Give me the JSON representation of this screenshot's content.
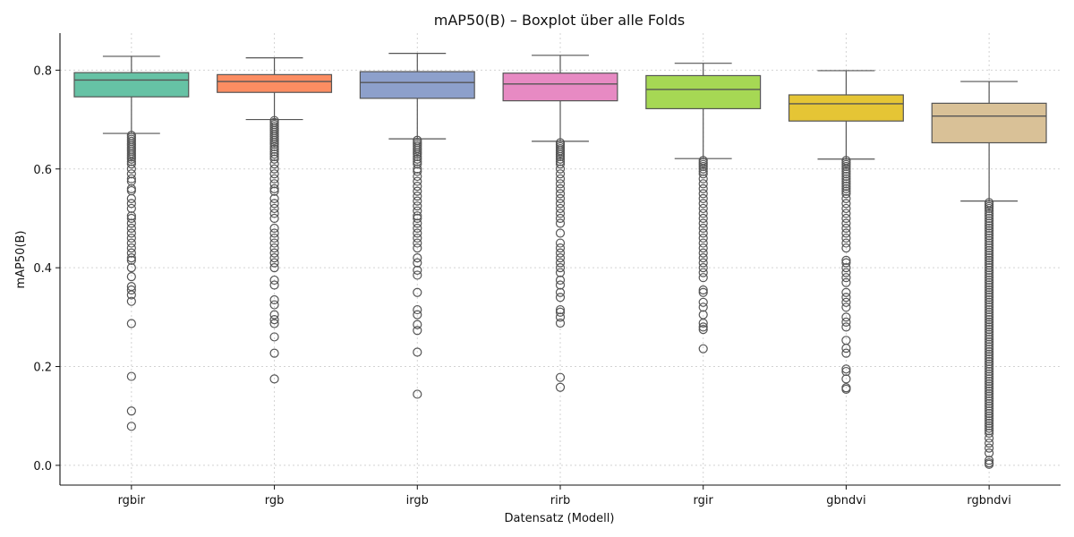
{
  "chart_data": {
    "type": "boxplot",
    "title": "mAP50(B) – Boxplot über alle Folds",
    "xlabel": "Datensatz (Modell)",
    "ylabel": "mAP50(B)",
    "ylim": [
      -0.04,
      0.875
    ],
    "yticks": [
      0.0,
      0.2,
      0.4,
      0.6,
      0.8
    ],
    "ytick_labels": [
      "0.0",
      "0.2",
      "0.4",
      "0.6",
      "0.8"
    ],
    "grid": true,
    "categories": [
      "rgbir",
      "rgb",
      "irgb",
      "rirb",
      "rgir",
      "gbndvi",
      "rgbndvi"
    ],
    "series": [
      {
        "category": "rgbir",
        "color": "#66c2a5",
        "whisker_low": 0.672,
        "q1": 0.746,
        "median": 0.78,
        "q3": 0.795,
        "whisker_high": 0.828,
        "fliers": [
          0.668,
          0.664,
          0.66,
          0.656,
          0.652,
          0.648,
          0.644,
          0.64,
          0.636,
          0.632,
          0.628,
          0.624,
          0.62,
          0.615,
          0.61,
          0.6,
          0.59,
          0.58,
          0.575,
          0.56,
          0.556,
          0.54,
          0.53,
          0.52,
          0.505,
          0.5,
          0.49,
          0.48,
          0.47,
          0.46,
          0.45,
          0.44,
          0.43,
          0.42,
          0.415,
          0.4,
          0.382,
          0.362,
          0.355,
          0.345,
          0.332,
          0.287,
          0.18,
          0.11,
          0.079
        ]
      },
      {
        "category": "rgb",
        "color": "#fc8d62",
        "whisker_low": 0.7,
        "q1": 0.755,
        "median": 0.777,
        "q3": 0.791,
        "whisker_high": 0.825,
        "fliers": [
          0.698,
          0.694,
          0.69,
          0.686,
          0.682,
          0.678,
          0.674,
          0.67,
          0.666,
          0.662,
          0.658,
          0.654,
          0.65,
          0.645,
          0.64,
          0.635,
          0.63,
          0.625,
          0.62,
          0.61,
          0.6,
          0.59,
          0.58,
          0.57,
          0.56,
          0.555,
          0.54,
          0.53,
          0.52,
          0.51,
          0.5,
          0.48,
          0.47,
          0.46,
          0.45,
          0.44,
          0.43,
          0.42,
          0.41,
          0.4,
          0.375,
          0.365,
          0.335,
          0.325,
          0.305,
          0.295,
          0.287,
          0.26,
          0.227,
          0.175
        ]
      },
      {
        "category": "irgb",
        "color": "#8da0cb",
        "whisker_low": 0.661,
        "q1": 0.743,
        "median": 0.775,
        "q3": 0.797,
        "whisker_high": 0.834,
        "fliers": [
          0.658,
          0.654,
          0.65,
          0.646,
          0.642,
          0.638,
          0.634,
          0.63,
          0.625,
          0.62,
          0.615,
          0.61,
          0.6,
          0.595,
          0.585,
          0.575,
          0.565,
          0.555,
          0.545,
          0.535,
          0.525,
          0.515,
          0.505,
          0.5,
          0.49,
          0.48,
          0.47,
          0.46,
          0.45,
          0.44,
          0.42,
          0.41,
          0.395,
          0.385,
          0.35,
          0.315,
          0.305,
          0.285,
          0.273,
          0.229,
          0.144
        ]
      },
      {
        "category": "rirb",
        "color": "#e78ac3",
        "whisker_low": 0.656,
        "q1": 0.738,
        "median": 0.772,
        "q3": 0.794,
        "whisker_high": 0.83,
        "fliers": [
          0.653,
          0.649,
          0.645,
          0.641,
          0.637,
          0.633,
          0.629,
          0.625,
          0.62,
          0.615,
          0.61,
          0.6,
          0.59,
          0.58,
          0.57,
          0.56,
          0.55,
          0.54,
          0.53,
          0.52,
          0.51,
          0.5,
          0.49,
          0.47,
          0.45,
          0.44,
          0.43,
          0.42,
          0.41,
          0.4,
          0.39,
          0.375,
          0.365,
          0.35,
          0.34,
          0.315,
          0.31,
          0.3,
          0.288,
          0.178,
          0.158
        ]
      },
      {
        "category": "rgir",
        "color": "#a6d854",
        "whisker_low": 0.621,
        "q1": 0.722,
        "median": 0.761,
        "q3": 0.789,
        "whisker_high": 0.814,
        "fliers": [
          0.617,
          0.613,
          0.609,
          0.605,
          0.6,
          0.595,
          0.59,
          0.58,
          0.57,
          0.56,
          0.55,
          0.54,
          0.53,
          0.52,
          0.51,
          0.5,
          0.49,
          0.48,
          0.47,
          0.46,
          0.45,
          0.44,
          0.43,
          0.42,
          0.41,
          0.4,
          0.39,
          0.38,
          0.355,
          0.35,
          0.33,
          0.32,
          0.305,
          0.288,
          0.28,
          0.275,
          0.236
        ]
      },
      {
        "category": "gbndvi",
        "color": "#e5c535",
        "whisker_low": 0.62,
        "q1": 0.697,
        "median": 0.732,
        "q3": 0.75,
        "whisker_high": 0.799,
        "fliers": [
          0.617,
          0.613,
          0.609,
          0.605,
          0.6,
          0.595,
          0.59,
          0.585,
          0.58,
          0.575,
          0.57,
          0.565,
          0.56,
          0.555,
          0.55,
          0.54,
          0.53,
          0.52,
          0.51,
          0.5,
          0.49,
          0.48,
          0.47,
          0.46,
          0.45,
          0.44,
          0.415,
          0.41,
          0.4,
          0.39,
          0.38,
          0.37,
          0.35,
          0.34,
          0.33,
          0.32,
          0.3,
          0.29,
          0.28,
          0.253,
          0.237,
          0.227,
          0.195,
          0.19,
          0.175,
          0.157,
          0.154
        ]
      },
      {
        "category": "rgbndvi",
        "color": "#d9c197",
        "whisker_low": 0.535,
        "q1": 0.653,
        "median": 0.707,
        "q3": 0.733,
        "whisker_high": 0.777,
        "fliers": [
          0.532,
          0.528,
          0.524,
          0.52,
          0.515,
          0.51,
          0.505,
          0.5,
          0.495,
          0.49,
          0.485,
          0.48,
          0.475,
          0.47,
          0.465,
          0.46,
          0.455,
          0.45,
          0.445,
          0.44,
          0.435,
          0.43,
          0.425,
          0.42,
          0.415,
          0.41,
          0.405,
          0.4,
          0.395,
          0.39,
          0.385,
          0.38,
          0.375,
          0.37,
          0.365,
          0.36,
          0.355,
          0.35,
          0.345,
          0.34,
          0.335,
          0.33,
          0.325,
          0.32,
          0.315,
          0.31,
          0.305,
          0.3,
          0.295,
          0.29,
          0.285,
          0.28,
          0.275,
          0.27,
          0.265,
          0.26,
          0.255,
          0.25,
          0.245,
          0.24,
          0.235,
          0.23,
          0.225,
          0.22,
          0.215,
          0.21,
          0.205,
          0.2,
          0.195,
          0.19,
          0.185,
          0.18,
          0.175,
          0.17,
          0.165,
          0.16,
          0.155,
          0.15,
          0.145,
          0.14,
          0.135,
          0.13,
          0.125,
          0.12,
          0.115,
          0.11,
          0.105,
          0.1,
          0.095,
          0.09,
          0.085,
          0.08,
          0.075,
          0.07,
          0.065,
          0.055,
          0.045,
          0.035,
          0.025,
          0.01,
          0.005,
          0.002
        ]
      }
    ]
  }
}
